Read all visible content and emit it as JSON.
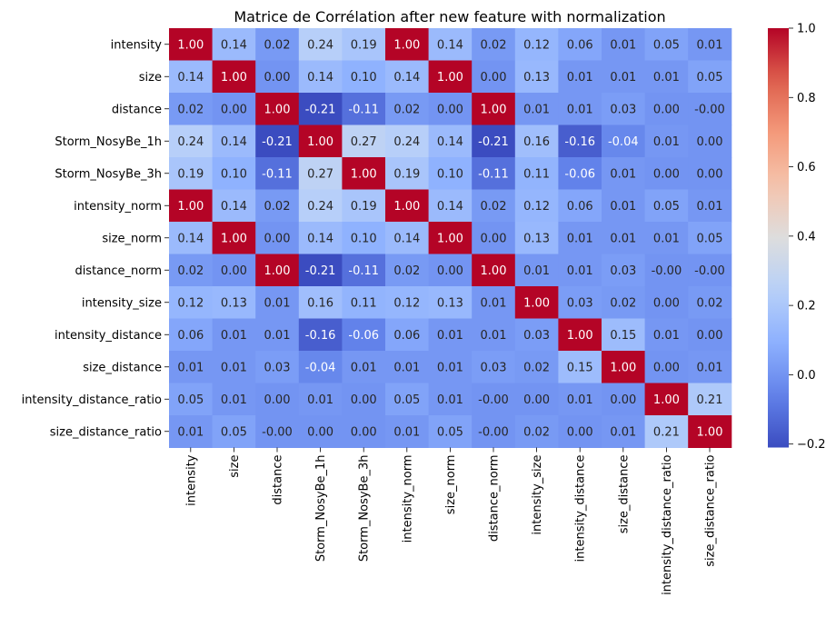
{
  "chart_data": {
    "type": "heatmap",
    "title": "Matrice de Corrélation after new feature with normalization",
    "labels": [
      "intensity",
      "size",
      "distance",
      "Storm_NosyBe_1h",
      "Storm_NosyBe_3h",
      "intensity_norm",
      "size_norm",
      "distance_norm",
      "intensity_size",
      "intensity_distance",
      "size_distance",
      "intensity_distance_ratio",
      "size_distance_ratio"
    ],
    "values": [
      [
        1.0,
        0.14,
        0.02,
        0.24,
        0.19,
        1.0,
        0.14,
        0.02,
        0.12,
        0.06,
        0.01,
        0.05,
        0.01
      ],
      [
        0.14,
        1.0,
        0.0,
        0.14,
        0.1,
        0.14,
        1.0,
        0.0,
        0.13,
        0.01,
        0.01,
        0.01,
        0.05
      ],
      [
        0.02,
        0.0,
        1.0,
        -0.21,
        -0.11,
        0.02,
        0.0,
        1.0,
        0.01,
        0.01,
        0.03,
        0.0,
        -0.0
      ],
      [
        0.24,
        0.14,
        -0.21,
        1.0,
        0.27,
        0.24,
        0.14,
        -0.21,
        0.16,
        -0.16,
        -0.04,
        0.01,
        0.0
      ],
      [
        0.19,
        0.1,
        -0.11,
        0.27,
        1.0,
        0.19,
        0.1,
        -0.11,
        0.11,
        -0.06,
        0.01,
        0.0,
        0.0
      ],
      [
        1.0,
        0.14,
        0.02,
        0.24,
        0.19,
        1.0,
        0.14,
        0.02,
        0.12,
        0.06,
        0.01,
        0.05,
        0.01
      ],
      [
        0.14,
        1.0,
        0.0,
        0.14,
        0.1,
        0.14,
        1.0,
        0.0,
        0.13,
        0.01,
        0.01,
        0.01,
        0.05
      ],
      [
        0.02,
        0.0,
        1.0,
        -0.21,
        -0.11,
        0.02,
        0.0,
        1.0,
        0.01,
        0.01,
        0.03,
        -0.0,
        -0.0
      ],
      [
        0.12,
        0.13,
        0.01,
        0.16,
        0.11,
        0.12,
        0.13,
        0.01,
        1.0,
        0.03,
        0.02,
        0.0,
        0.02
      ],
      [
        0.06,
        0.01,
        0.01,
        -0.16,
        -0.06,
        0.06,
        0.01,
        0.01,
        0.03,
        1.0,
        0.15,
        0.01,
        0.0
      ],
      [
        0.01,
        0.01,
        0.03,
        -0.04,
        0.01,
        0.01,
        0.01,
        0.03,
        0.02,
        0.15,
        1.0,
        0.0,
        0.01
      ],
      [
        0.05,
        0.01,
        0.0,
        0.01,
        0.0,
        0.05,
        0.01,
        -0.0,
        0.0,
        0.01,
        0.0,
        1.0,
        0.21
      ],
      [
        0.01,
        0.05,
        -0.0,
        0.0,
        0.0,
        0.01,
        0.05,
        -0.0,
        0.02,
        0.0,
        0.01,
        0.21,
        1.0
      ]
    ],
    "value_format": "2 decimals",
    "colormap": "coolwarm",
    "colorbar": {
      "range": [
        -0.21,
        1.0
      ],
      "ticks": [
        1.0,
        0.8,
        0.6,
        0.4,
        0.2,
        0.0,
        -0.2
      ],
      "tick_labels": [
        "1.0",
        "0.8",
        "0.6",
        "0.4",
        "0.2",
        "0.0",
        "−0.2"
      ]
    },
    "annotations": true,
    "grid": false,
    "legend": "colorbar-right"
  }
}
